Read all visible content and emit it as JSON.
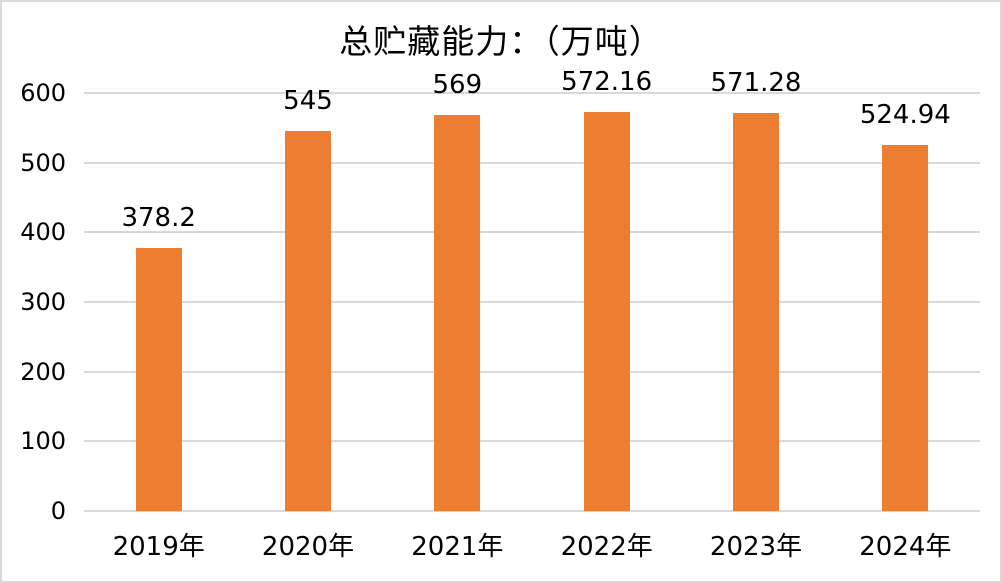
{
  "chart_data": {
    "type": "bar",
    "title": "总贮藏能力：（万吨）",
    "categories": [
      "2019年",
      "2020年",
      "2021年",
      "2022年",
      "2023年",
      "2024年"
    ],
    "values": [
      378.2,
      545,
      569,
      572.16,
      571.28,
      524.94
    ],
    "data_labels": [
      "378.2",
      "545",
      "569",
      "572.16",
      "571.28",
      "524.94"
    ],
    "xlabel": "",
    "ylabel": "",
    "ylim": [
      0,
      600
    ],
    "yticks": [
      0,
      100,
      200,
      300,
      400,
      500,
      600
    ],
    "grid": true,
    "legend": "none",
    "bar_color": "#ED7D31",
    "gridline_color": "#D9D9D9",
    "border_color": "#D9D9D9",
    "background_color": "#FFFFFF",
    "text_color": "#000000"
  }
}
